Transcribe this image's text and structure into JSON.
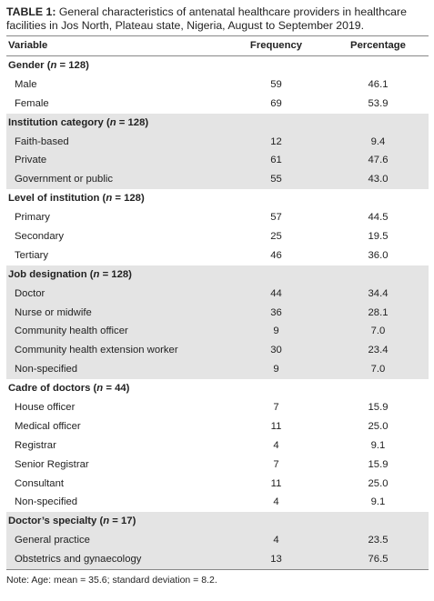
{
  "caption": {
    "label": "TABLE 1:",
    "text": " General characteristics of antenatal healthcare providers in healthcare facilities in Jos North, Plateau state, Nigeria, August to September 2019."
  },
  "headers": [
    "Variable",
    "Frequency",
    "Percentage"
  ],
  "groups": [
    {
      "title": "Gender",
      "n_prefix": " (",
      "n_symbol": "n",
      "n_suffix": " = 128)",
      "shaded": false,
      "rows": [
        {
          "label": "Male",
          "freq": "59",
          "pct": "46.1"
        },
        {
          "label": "Female",
          "freq": "69",
          "pct": "53.9"
        }
      ]
    },
    {
      "title": "Institution category",
      "n_prefix": " (",
      "n_symbol": "n",
      "n_suffix": " = 128)",
      "shaded": true,
      "rows": [
        {
          "label": "Faith-based",
          "freq": "12",
          "pct": "9.4"
        },
        {
          "label": "Private",
          "freq": "61",
          "pct": "47.6"
        },
        {
          "label": "Government or public",
          "freq": "55",
          "pct": "43.0"
        }
      ]
    },
    {
      "title": "Level of institution",
      "n_prefix": " (",
      "n_symbol": "n",
      "n_suffix": " = 128)",
      "shaded": false,
      "rows": [
        {
          "label": "Primary",
          "freq": "57",
          "pct": "44.5"
        },
        {
          "label": "Secondary",
          "freq": "25",
          "pct": "19.5"
        },
        {
          "label": "Tertiary",
          "freq": "46",
          "pct": "36.0"
        }
      ]
    },
    {
      "title": "Job designation",
      "n_prefix": " (",
      "n_symbol": "n",
      "n_suffix": " = 128)",
      "shaded": true,
      "rows": [
        {
          "label": "Doctor",
          "freq": "44",
          "pct": "34.4"
        },
        {
          "label": "Nurse or midwife",
          "freq": "36",
          "pct": "28.1"
        },
        {
          "label": "Community health officer",
          "freq": "9",
          "pct": "7.0"
        },
        {
          "label": "Community health extension worker",
          "freq": "30",
          "pct": "23.4"
        },
        {
          "label": "Non-specified",
          "freq": "9",
          "pct": "7.0"
        }
      ]
    },
    {
      "title": "Cadre of doctors",
      "n_prefix": " (",
      "n_symbol": "n",
      "n_suffix": " = 44)",
      "shaded": false,
      "rows": [
        {
          "label": "House officer",
          "freq": "7",
          "pct": "15.9"
        },
        {
          "label": "Medical officer",
          "freq": "11",
          "pct": "25.0"
        },
        {
          "label": "Registrar",
          "freq": "4",
          "pct": "9.1"
        },
        {
          "label": "Senior Registrar",
          "freq": "7",
          "pct": "15.9"
        },
        {
          "label": "Consultant",
          "freq": "11",
          "pct": "25.0"
        },
        {
          "label": "Non-specified",
          "freq": "4",
          "pct": "9.1"
        }
      ]
    },
    {
      "title": "Doctor’s specialty",
      "n_prefix": " (",
      "n_symbol": "n",
      "n_suffix": " = 17)",
      "shaded": true,
      "rows": [
        {
          "label": "General practice",
          "freq": "4",
          "pct": "23.5"
        },
        {
          "label": "Obstetrics and gynaecology",
          "freq": "13",
          "pct": "76.5"
        }
      ]
    }
  ],
  "note": "Note: Age: mean = 35.6; standard deviation = 8.2."
}
